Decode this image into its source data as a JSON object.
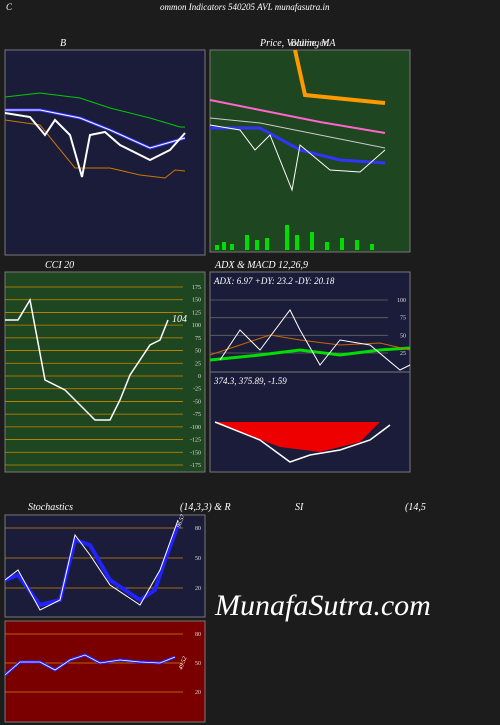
{
  "header": {
    "letter": "C",
    "title": "ommon  Indicators 540205 AVL  munafasutra.in"
  },
  "panels": {
    "bollinger": {
      "label": "B"
    },
    "price": {
      "label": "Price, Volume, MA",
      "overlay": "Bollinger"
    },
    "cci": {
      "label": "CCI 20",
      "ticks": [
        "175",
        "150",
        "125",
        "100",
        "75",
        "50",
        "25",
        "0",
        "-25",
        "-50",
        "-75",
        "-100",
        "-125",
        "-150",
        "-175"
      ],
      "last": "104"
    },
    "adx": {
      "label": "ADX  & MACD 12,26,9",
      "readout": "ADX: 6.97 +DY: 23.2  -DY: 20.18",
      "ticks": [
        "100",
        "75",
        "50",
        "25"
      ]
    },
    "macd": {
      "readout": "374.3,  375.89,  -1.59"
    },
    "stoch": {
      "label": "Stochastics",
      "params": "(14,3,3) & R",
      "ticks": [
        "80",
        "50",
        "20"
      ],
      "last": "96.57"
    },
    "rsi": {
      "label": "SI",
      "params": "(14,5",
      "ticks": [
        "80",
        "50",
        "20"
      ],
      "last": "49.52"
    }
  },
  "watermark": "MunafaSutra.com"
}
